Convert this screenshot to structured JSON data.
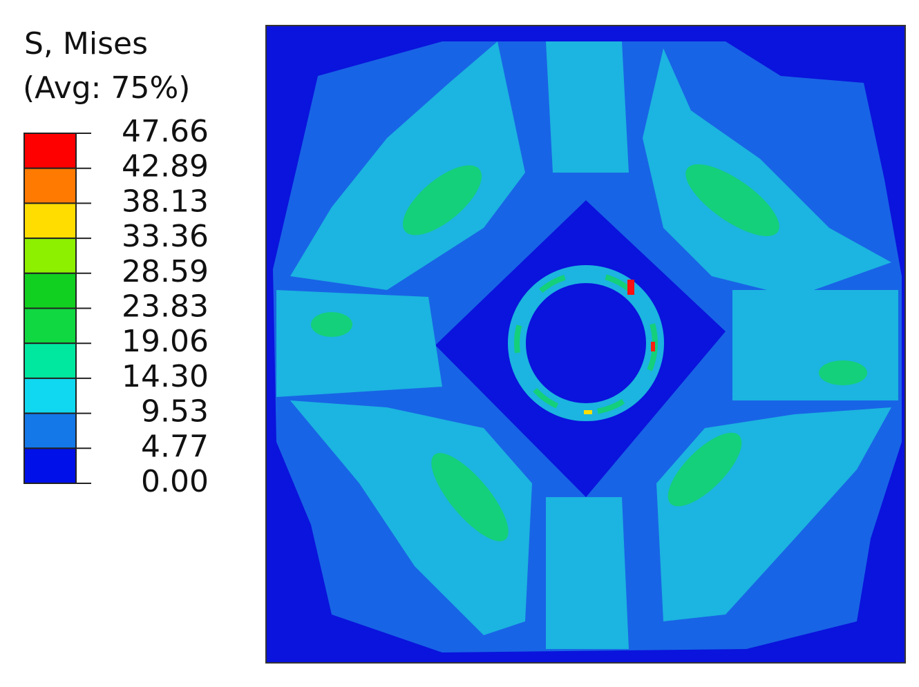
{
  "legend": {
    "title": "S, Mises",
    "subtitle": "(Avg: 75%)",
    "levels": [
      "47.66",
      "42.89",
      "38.13",
      "33.36",
      "28.59",
      "23.83",
      "19.06",
      "14.30",
      "9.53",
      "4.77",
      "0.00"
    ]
  }
}
